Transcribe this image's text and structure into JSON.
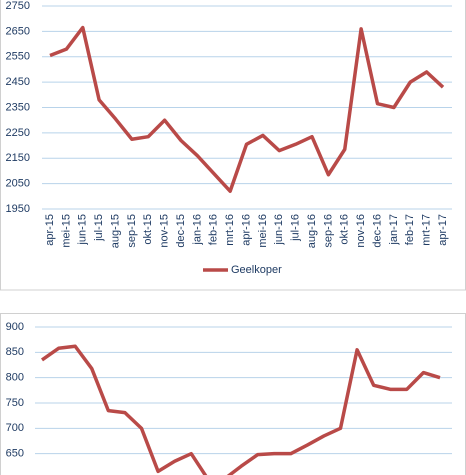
{
  "chart_data": [
    {
      "type": "line",
      "categories": [
        "apr-15",
        "mei-15",
        "jun-15",
        "jul-15",
        "aug-15",
        "sep-15",
        "okt-15",
        "nov-15",
        "dec-15",
        "jan-16",
        "feb-16",
        "mrt-16",
        "apr-16",
        "mei-16",
        "jun-16",
        "jul-16",
        "aug-16",
        "sep-16",
        "okt-16",
        "nov-16",
        "dec-16",
        "jan-17",
        "feb-17",
        "mrt-17",
        "apr-17"
      ],
      "series": [
        {
          "name": "Geelkoper",
          "color": "#b94a48",
          "values": [
            2555,
            2580,
            2665,
            2380,
            2305,
            2225,
            2235,
            2300,
            2220,
            2160,
            2090,
            2020,
            2205,
            2240,
            2180,
            2205,
            2235,
            2085,
            2185,
            2660,
            2365,
            2350,
            2450,
            2490,
            2430
          ]
        }
      ],
      "ylim": [
        1950,
        2750
      ],
      "yticks": [
        1950,
        2050,
        2150,
        2250,
        2350,
        2450,
        2550,
        2650,
        2750
      ],
      "grid": true,
      "legend": "bottom"
    },
    {
      "type": "line",
      "series": [
        {
          "color": "#b94a48",
          "values": [
            835,
            858,
            862,
            818,
            735,
            731,
            700,
            615,
            635,
            650,
            600,
            600,
            625,
            648,
            650,
            650,
            667,
            685,
            700,
            855,
            785,
            777,
            777,
            810,
            800
          ]
        }
      ],
      "ylim": [
        600,
        900
      ],
      "yticks": [
        650,
        700,
        750,
        800,
        850,
        900
      ],
      "grid": true
    }
  ]
}
